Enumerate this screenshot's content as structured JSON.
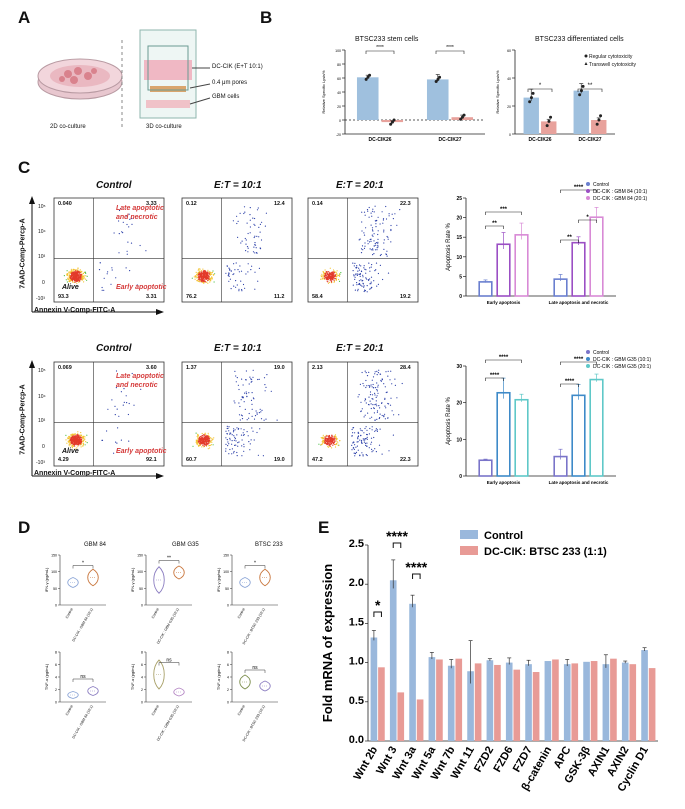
{
  "panels": {
    "a": "A",
    "b": "B",
    "c": "C",
    "d": "D",
    "e": "E"
  },
  "panel_a": {
    "dish_label": "2D co-culture",
    "well_label": "3D co-culture",
    "legend": [
      "DC-CIK (E+T 10:1)",
      "0.4 μm pores",
      "GBM cells"
    ]
  },
  "panel_c": {
    "row_titles": [
      "Control",
      "E:T = 10:1",
      "E:T = 20:1"
    ],
    "quadrant_labels": {
      "late": "Late apoptotic\nand necrotic",
      "early": "Early apoptotic",
      "alive": "Alive"
    },
    "x_axis": "Annexin V-Comp-FITC-A",
    "y_axis": "7AAD-Comp-Percp-A",
    "ticks": [
      "10⁵",
      "10⁴",
      "10³",
      "0",
      "-10³"
    ],
    "row1_quadrants": [
      {
        "ul": "0.040",
        "ur": "3.33",
        "ll": "93.3",
        "lr": "3.31"
      },
      {
        "ul": "0.12",
        "ur": "12.4",
        "ll": "76.2",
        "lr": "11.2"
      },
      {
        "ul": "0.14",
        "ur": "22.3",
        "ll": "58.4",
        "lr": "19.2"
      }
    ],
    "row2_quadrants": [
      {
        "ul": "0.069",
        "ur": "3.60",
        "ll": "4.29",
        "lr": "92.1"
      },
      {
        "ul": "1.37",
        "ur": "19.0",
        "ll": "60.7",
        "lr": "19.0"
      },
      {
        "ul": "2.13",
        "ur": "28.4",
        "ll": "47.2",
        "lr": "22.3"
      }
    ]
  },
  "panel_d": {
    "columns": [
      "GBM 84",
      "GBM G35",
      "BTSC 233"
    ],
    "ifn_label": "IFN-γ (pg/mL)",
    "tnf_label": "TNF-α (pg/mL)",
    "sig_ifn": [
      "*",
      "**",
      "*"
    ],
    "sig_tnf": [
      "ns",
      "ns",
      "ns"
    ],
    "x_control": "Control",
    "x_treat": [
      "DC-CIK : GBM 84 (10:1)",
      "DC-CIK : GBM G35 (10:1)",
      "DC-CIK : BTSC 233 (10:1)"
    ],
    "ifn_ticks": [
      "150",
      "100",
      "50",
      "0"
    ],
    "tnf_ticks": [
      "8",
      "6",
      "4",
      "2",
      "0"
    ]
  },
  "chart_data": [
    {
      "id": "b_stem",
      "type": "bar",
      "title": "BTSC233 stem cells",
      "ylabel": "Relative Specific Lysis%",
      "categories": [
        "DC-CIK26",
        "DC-CIK27"
      ],
      "series": [
        {
          "name": "Regular cytotoxicity",
          "values": [
            61,
            58
          ],
          "color": "#9fc0de"
        },
        {
          "name": "Transwell cytotoxicity",
          "values": [
            -3,
            4
          ],
          "color": "#e8a29c"
        }
      ],
      "ylim": [
        -20,
        100
      ],
      "yticks": [
        "100",
        "80",
        "60",
        "40",
        "20",
        "0",
        "-20"
      ],
      "significance": [
        "****",
        "****"
      ]
    },
    {
      "id": "b_diff",
      "type": "bar",
      "title": "BTSC233 differentiated cells",
      "ylabel": "Relative Specific Lysis%",
      "categories": [
        "DC-CIK26",
        "DC-CIK27"
      ],
      "series": [
        {
          "name": "Regular cytotoxicity",
          "values": [
            26,
            31
          ],
          "color": "#9fc0de"
        },
        {
          "name": "Transwell cytotoxicity",
          "values": [
            9,
            10
          ],
          "color": "#e8a29c"
        }
      ],
      "ylim": [
        0,
        60
      ],
      "yticks": [
        "60",
        "40",
        "20",
        "0"
      ],
      "significance": [
        "*",
        "**"
      ]
    },
    {
      "id": "c_gbm84",
      "type": "bar",
      "ylabel": "Apoptosis Rate %",
      "categories": [
        "Early apoptosis",
        "Late apoptosis and necrotic"
      ],
      "series": [
        {
          "name": "Control",
          "values": [
            3.6,
            4.3
          ],
          "color": "#6a7fcf"
        },
        {
          "name": "DC-CIK : GBM 84 (10:1)",
          "values": [
            13.2,
            13.6
          ],
          "color": "#9b4fc4"
        },
        {
          "name": "DC-CIK : GBM 84 (20:1)",
          "values": [
            15.6,
            20.1
          ],
          "color": "#d88ad6"
        }
      ],
      "ylim": [
        0,
        25
      ],
      "yticks": [
        "25",
        "20",
        "15",
        "10",
        "5",
        "0"
      ],
      "significance": [
        "**",
        "***",
        "**",
        "*",
        "****"
      ]
    },
    {
      "id": "c_g35",
      "type": "bar",
      "ylabel": "Apoptosis Rate %",
      "categories": [
        "Early apoptosis",
        "Late apoptosis and necrotic"
      ],
      "series": [
        {
          "name": "Control",
          "values": [
            4.3,
            5.3
          ],
          "color": "#7a74c9"
        },
        {
          "name": "DC-CIK : GBM G35 (10:1)",
          "values": [
            22.7,
            22.0
          ],
          "color": "#3e8ac8"
        },
        {
          "name": "DC-CIK : GBM G35 (20:1)",
          "values": [
            20.8,
            26.3
          ],
          "color": "#5fc8c8"
        }
      ],
      "ylim": [
        0,
        30
      ],
      "yticks": [
        "30",
        "20",
        "10",
        "0"
      ],
      "significance": [
        "****",
        "****",
        "****",
        "****"
      ]
    },
    {
      "id": "e_wnt",
      "type": "bar",
      "ylabel": "Fold mRNA of expression",
      "categories": [
        "Wnt 2b",
        "Wnt 3",
        "Wnt 3a",
        "Wnt 5a",
        "Wnt 7b",
        "Wnt 11",
        "FZD2",
        "FZD6",
        "FZD7",
        "β-catenin",
        "APC",
        "GSK-3β",
        "AXIN1",
        "AXIN2",
        "Cyclin D1"
      ],
      "series": [
        {
          "name": "Control",
          "values": [
            1.32,
            2.05,
            1.75,
            1.07,
            0.96,
            0.89,
            1.03,
            1.0,
            0.98,
            1.02,
            0.98,
            1.01,
            0.98,
            1.0,
            1.16
          ],
          "color": "#9ab8dc"
        },
        {
          "name": "DC-CIK: BTSC 233 (1:1)",
          "values": [
            0.94,
            0.62,
            0.53,
            1.04,
            1.05,
            0.99,
            0.97,
            0.91,
            0.88,
            1.04,
            0.99,
            1.02,
            1.05,
            0.98,
            0.93
          ],
          "color": "#e89b96"
        }
      ],
      "ylim": [
        0,
        2.5
      ],
      "yticks": [
        "2.5",
        "2.0",
        "1.5",
        "1.0",
        "0.5",
        "0.0"
      ],
      "significance": [
        "*",
        "****",
        "****"
      ]
    }
  ]
}
